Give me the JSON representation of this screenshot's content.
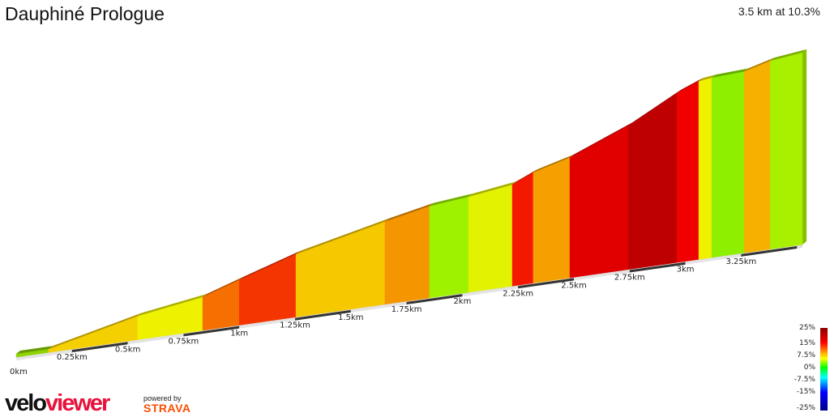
{
  "header": {
    "title": "Dauphiné Prologue",
    "summary": "3.5 km at 10.3%"
  },
  "chart_data": {
    "type": "area",
    "title": "Dauphiné Prologue",
    "xlabel": "",
    "ylabel": "",
    "x_unit": "km",
    "xlim": [
      0,
      3.5
    ],
    "x_ticks": [
      "0km",
      "0.25km",
      "0.5km",
      "0.75km",
      "1km",
      "1.25km",
      "1.5km",
      "1.75km",
      "2km",
      "2.25km",
      "2.5km",
      "2.75km",
      "3km",
      "3.25km"
    ],
    "segments": [
      {
        "start_km": 0,
        "end_km": 0.145,
        "elev_start": 0,
        "elev_end": 0,
        "color": "#8fd400"
      },
      {
        "start_km": 0.145,
        "end_km": 0.545,
        "elev_start": 0,
        "elev_end": 38,
        "color": "#f5d000"
      },
      {
        "start_km": 0.545,
        "end_km": 0.836,
        "elev_start": 38,
        "elev_end": 56,
        "color": "#eef200"
      },
      {
        "start_km": 0.836,
        "end_km": 1.0,
        "elev_start": 56,
        "elev_end": 78,
        "color": "#f57000"
      },
      {
        "start_km": 1.0,
        "end_km": 1.254,
        "elev_start": 78,
        "elev_end": 111,
        "color": "#f53500"
      },
      {
        "start_km": 1.254,
        "end_km": 1.653,
        "elev_start": 111,
        "elev_end": 148,
        "color": "#f5c800"
      },
      {
        "start_km": 1.653,
        "end_km": 1.853,
        "elev_start": 148,
        "elev_end": 165,
        "color": "#f59500"
      },
      {
        "start_km": 1.853,
        "end_km": 2.028,
        "elev_start": 165,
        "elev_end": 172,
        "color": "#9ef200"
      },
      {
        "start_km": 2.028,
        "end_km": 2.224,
        "elev_start": 172,
        "elev_end": 183,
        "color": "#e2f200"
      },
      {
        "start_km": 2.224,
        "end_km": 2.318,
        "elev_start": 183,
        "elev_end": 200,
        "color": "#f51800"
      },
      {
        "start_km": 2.318,
        "end_km": 2.482,
        "elev_start": 200,
        "elev_end": 218,
        "color": "#f5a000"
      },
      {
        "start_km": 2.482,
        "end_km": 2.744,
        "elev_start": 218,
        "elev_end": 262,
        "color": "#e00000"
      },
      {
        "start_km": 2.744,
        "end_km": 2.962,
        "elev_start": 262,
        "elev_end": 310,
        "color": "#bf0000"
      },
      {
        "start_km": 2.962,
        "end_km": 3.06,
        "elev_start": 310,
        "elev_end": 326,
        "color": "#f00000"
      },
      {
        "start_km": 3.06,
        "end_km": 3.118,
        "elev_start": 326,
        "elev_end": 329,
        "color": "#f0f000"
      },
      {
        "start_km": 3.118,
        "end_km": 3.263,
        "elev_start": 329,
        "elev_end": 332,
        "color": "#8ef000"
      },
      {
        "start_km": 3.263,
        "end_km": 3.38,
        "elev_start": 332,
        "elev_end": 345,
        "color": "#f5b000"
      },
      {
        "start_km": 3.38,
        "end_km": 3.525,
        "elev_start": 345,
        "elev_end": 352,
        "color": "#a8f000"
      }
    ],
    "legend": {
      "type": "colorscale",
      "labels": [
        "25%",
        "15%",
        "7.5%",
        "0%",
        "-7.5%",
        "-15%",
        "-25%"
      ],
      "placement": "bottom-right"
    }
  },
  "footer": {
    "logo_part1": "velo",
    "logo_part2": "viewer",
    "powered": "powered by",
    "strava": "STRAVA"
  }
}
